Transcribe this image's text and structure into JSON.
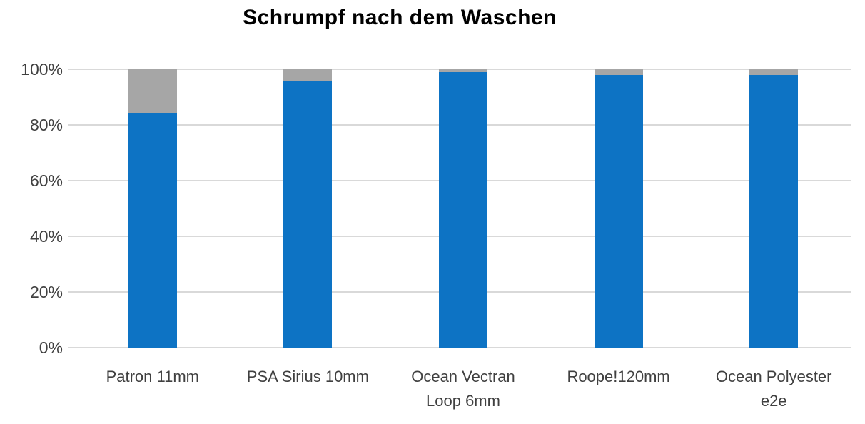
{
  "colors": {
    "bar_blue": "#0D73C4",
    "bar_gray": "#A6A6A6",
    "gridline": "#D9D9D9",
    "axis_text": "#404040",
    "title_text": "#000000",
    "background": "#FFFFFF"
  },
  "chart_data": {
    "type": "bar",
    "stacked": true,
    "title": "Schrumpf nach dem Waschen",
    "categories": [
      "Patron 11mm",
      "PSA Sirius 10mm",
      "Ocean Vectran Loop 6mm",
      "Roope!120mm",
      "Ocean Polyester e2e"
    ],
    "series": [
      {
        "name": "blue-series",
        "color": "#0D73C4",
        "values": [
          84,
          96,
          99,
          98,
          98
        ]
      },
      {
        "name": "gray-series",
        "color": "#A6A6A6",
        "values": [
          16,
          4,
          1,
          2,
          2
        ]
      }
    ],
    "xlabel": "",
    "ylabel": "",
    "ylim": [
      0,
      100
    ],
    "ytick_values": [
      0,
      20,
      40,
      60,
      80,
      100
    ],
    "ytick_labels": [
      "0%",
      "20%",
      "40%",
      "60%",
      "80%",
      "100%"
    ],
    "grid": "horizontal",
    "legend": "none"
  }
}
